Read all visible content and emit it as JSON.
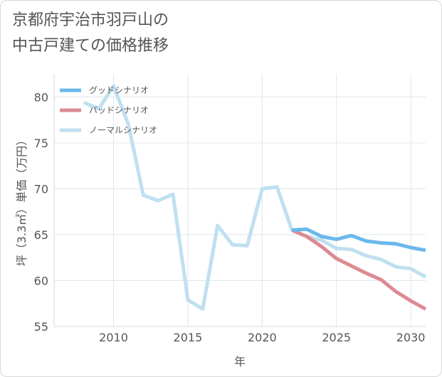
{
  "chart_data": {
    "type": "line",
    "title": "京都府宇治市羽戸山の\n中古戸建ての価格推移",
    "xlabel": "年",
    "ylabel": "坪（3.3㎡）単価（万円）",
    "xlim": [
      2006,
      2031
    ],
    "ylim": [
      55,
      82.5
    ],
    "x_ticks": [
      2010,
      2015,
      2020,
      2025,
      2030
    ],
    "y_ticks": [
      55,
      60,
      65,
      70,
      75,
      80
    ],
    "legend_position": "top-left",
    "grid": true,
    "series": [
      {
        "name": "グッドシナリオ",
        "color": "#6ab8ec",
        "points": [
          [
            2022,
            65.5
          ],
          [
            2023,
            65.6
          ],
          [
            2024,
            64.8
          ],
          [
            2025,
            64.5
          ],
          [
            2026,
            64.9
          ],
          [
            2027,
            64.3
          ],
          [
            2028,
            64.1
          ],
          [
            2029,
            64.0
          ],
          [
            2030,
            63.6
          ],
          [
            2031,
            63.3
          ]
        ]
      },
      {
        "name": "バッドシナリオ",
        "color": "#dc8a94",
        "points": [
          [
            2022,
            65.5
          ],
          [
            2023,
            64.8
          ],
          [
            2024,
            63.7
          ],
          [
            2025,
            62.4
          ],
          [
            2026,
            61.6
          ],
          [
            2027,
            60.8
          ],
          [
            2028,
            60.1
          ],
          [
            2029,
            58.8
          ],
          [
            2030,
            57.8
          ],
          [
            2031,
            56.9
          ]
        ]
      },
      {
        "name": "ノーマルシナリオ",
        "color": "#bfe0ef",
        "points": [
          [
            2008,
            79.4
          ],
          [
            2009,
            78.7
          ],
          [
            2010,
            81.2
          ],
          [
            2011,
            77.0
          ],
          [
            2012,
            69.3
          ],
          [
            2013,
            68.7
          ],
          [
            2014,
            69.4
          ],
          [
            2015,
            57.9
          ],
          [
            2016,
            56.9
          ],
          [
            2017,
            66.0
          ],
          [
            2018,
            63.9
          ],
          [
            2019,
            63.8
          ],
          [
            2020,
            70.0
          ],
          [
            2021,
            70.2
          ],
          [
            2022,
            65.5
          ],
          [
            2023,
            64.8
          ],
          [
            2024,
            64.4
          ],
          [
            2025,
            63.5
          ],
          [
            2026,
            63.4
          ],
          [
            2027,
            62.7
          ],
          [
            2028,
            62.3
          ],
          [
            2029,
            61.5
          ],
          [
            2030,
            61.3
          ],
          [
            2031,
            60.4
          ]
        ]
      }
    ]
  }
}
